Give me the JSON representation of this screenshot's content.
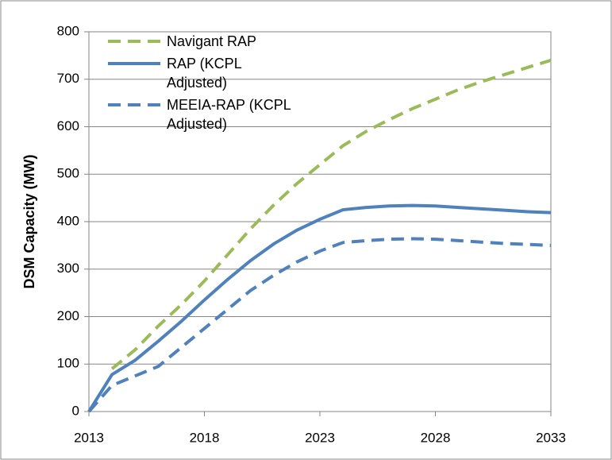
{
  "chart_data": {
    "type": "line",
    "y_label": "DSM Capacity (MW)",
    "x": [
      2013,
      2014,
      2015,
      2016,
      2017,
      2018,
      2019,
      2020,
      2021,
      2022,
      2023,
      2024,
      2025,
      2026,
      2027,
      2028,
      2029,
      2030,
      2031,
      2032,
      2033
    ],
    "series": [
      {
        "name": "Navigant RAP",
        "color": "#9bbb59",
        "dashed": true,
        "values": [
          null,
          90,
          130,
          180,
          225,
          275,
          330,
          385,
          435,
          480,
          520,
          560,
          590,
          615,
          638,
          658,
          678,
          695,
          710,
          725,
          740
        ]
      },
      {
        "name": "RAP (KCPL Adjusted)",
        "color": "#4f81bd",
        "dashed": false,
        "values": [
          0,
          78,
          108,
          148,
          190,
          235,
          278,
          318,
          353,
          382,
          405,
          425,
          430,
          433,
          434,
          433,
          430,
          427,
          424,
          421,
          419
        ]
      },
      {
        "name": "MEEIA-RAP (KCPL Adjusted)",
        "color": "#4f81bd",
        "dashed": true,
        "values": [
          0,
          55,
          75,
          95,
          135,
          175,
          215,
          255,
          287,
          315,
          338,
          356,
          360,
          363,
          364,
          363,
          360,
          357,
          354,
          352,
          350
        ]
      }
    ],
    "xlim": [
      2013,
      2033
    ],
    "xticks": [
      2013,
      2018,
      2023,
      2028,
      2033
    ],
    "ylim": [
      0,
      800
    ],
    "yticks": [
      0,
      100,
      200,
      300,
      400,
      500,
      600,
      700,
      800
    ],
    "grid": true,
    "legend": "upper-left"
  }
}
